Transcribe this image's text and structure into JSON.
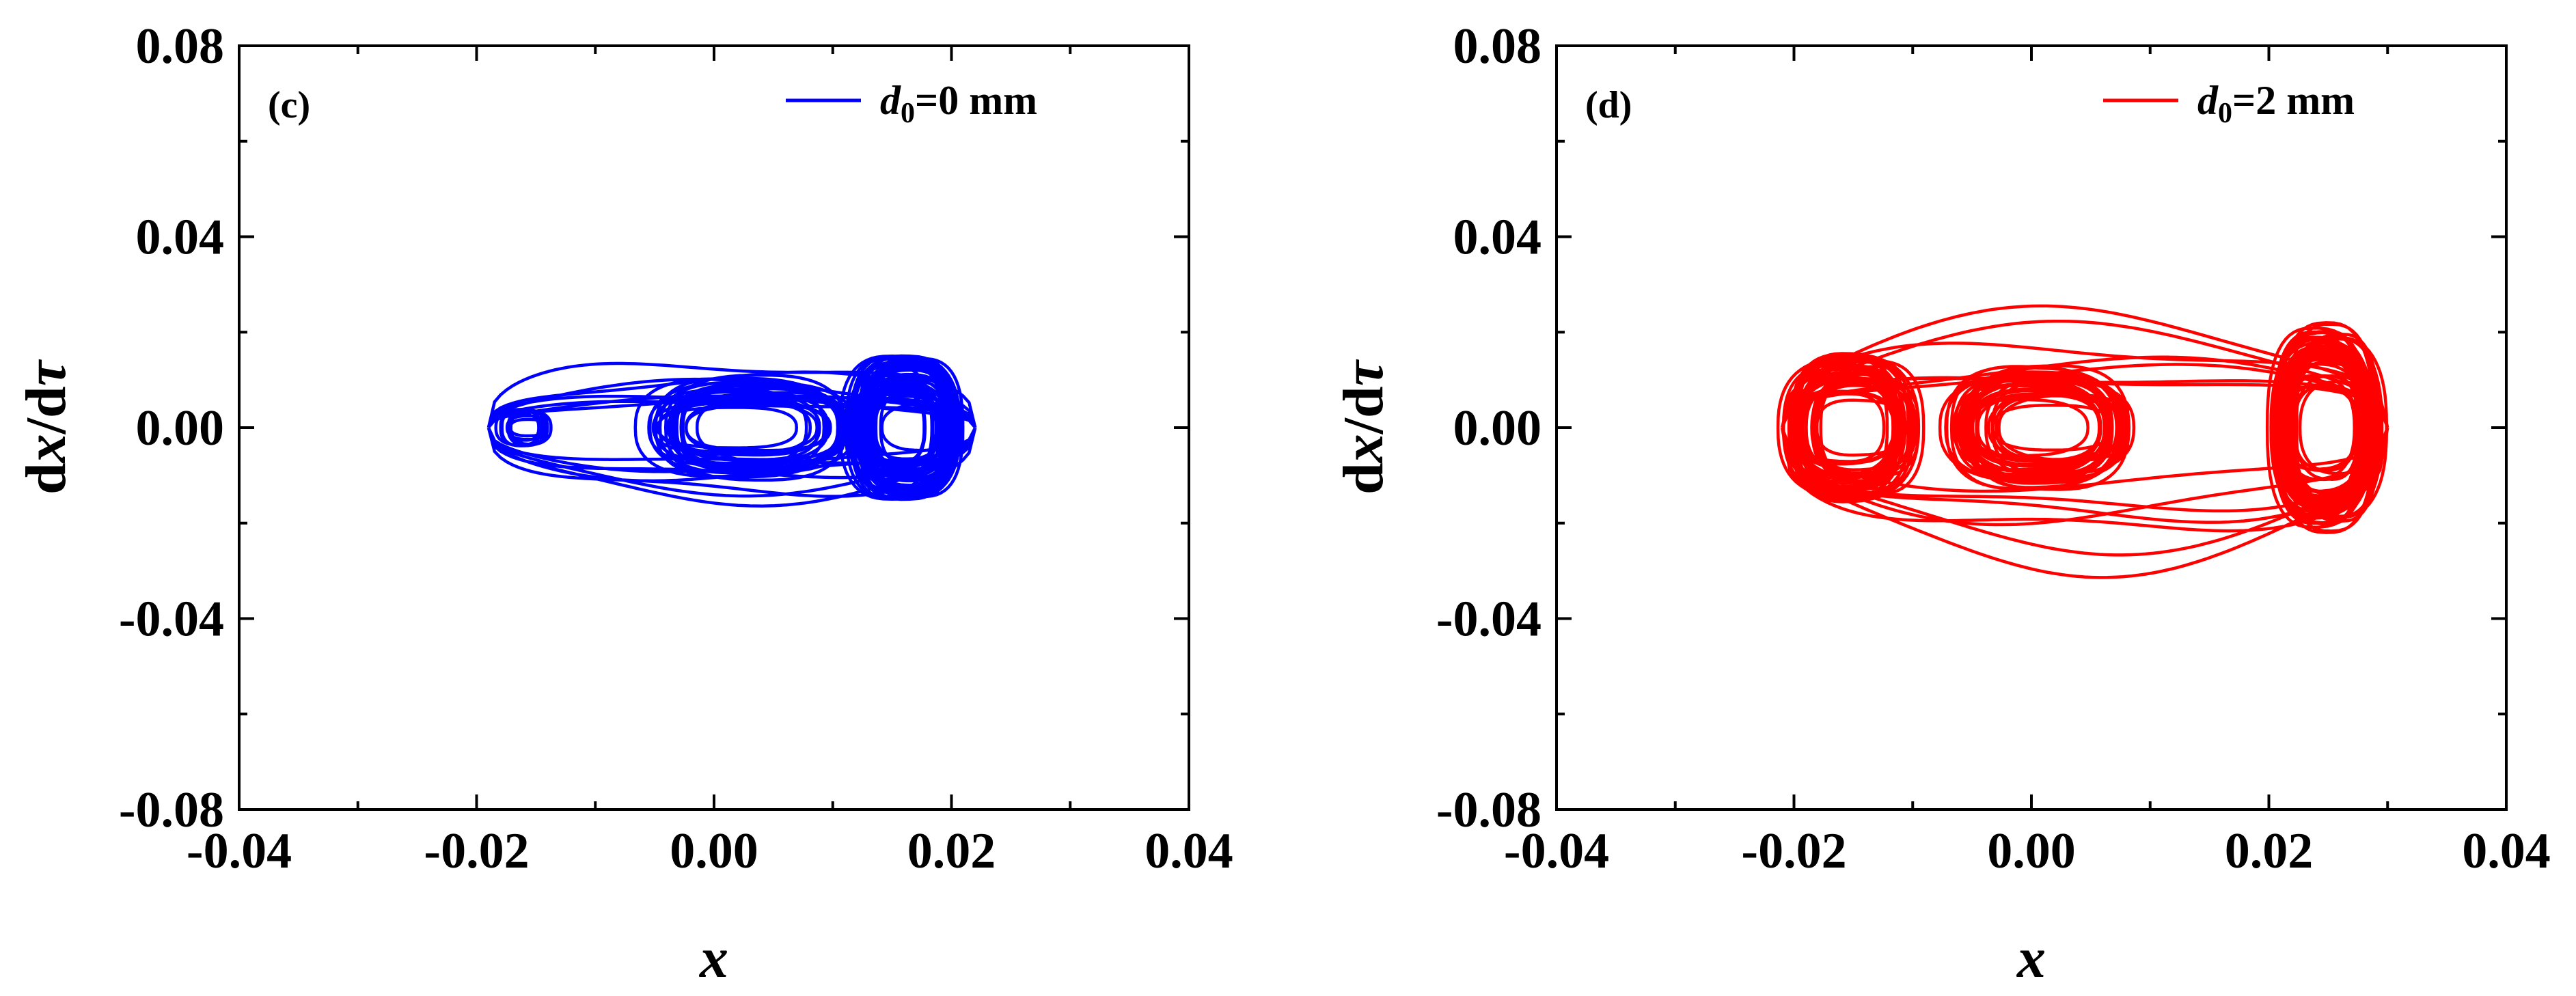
{
  "chart_data": [
    {
      "type": "line",
      "panel_label": "(c)",
      "xlabel": "x",
      "ylabel": "dx/dτ",
      "xlim": [
        -0.04,
        0.04
      ],
      "ylim": [
        -0.08,
        0.08
      ],
      "xticks": [
        "-0.04",
        "-0.02",
        "0.00",
        "0.02",
        "0.04"
      ],
      "yticks": [
        "0.08",
        "0.04",
        "0.00",
        "-0.04",
        "-0.08"
      ],
      "legend_position": "top-right",
      "series": [
        {
          "name": "d0=0 mm",
          "legend": {
            "symbol": "d",
            "subscript": "0",
            "rest": "=0 mm"
          },
          "color": "#0000ff",
          "wells": [
            {
              "cx": -0.016,
              "rx": 0.002,
              "ry": 0.004,
              "loops": 8
            },
            {
              "cx": 0.003,
              "rx": 0.008,
              "ry": 0.011,
              "loops": 22
            },
            {
              "cx": 0.016,
              "rx": 0.004,
              "ry": 0.015,
              "loops": 45
            }
          ],
          "envelope": {
            "x_min": -0.019,
            "x_max": 0.022,
            "y_min": -0.017,
            "y_max": 0.017
          }
        }
      ]
    },
    {
      "type": "line",
      "panel_label": "(d)",
      "xlabel": "x",
      "ylabel": "dx/dτ",
      "xlim": [
        -0.04,
        0.04
      ],
      "ylim": [
        -0.08,
        0.08
      ],
      "xticks": [
        "-0.04",
        "-0.02",
        "0.00",
        "0.02",
        "0.04"
      ],
      "yticks": [
        "0.08",
        "0.04",
        "0.00",
        "-0.04",
        "-0.08"
      ],
      "legend_position": "top-right",
      "series": [
        {
          "name": "d0=2 mm",
          "legend": {
            "symbol": "d",
            "subscript": "0",
            "rest": "=2 mm"
          },
          "color": "#ff0000",
          "wells": [
            {
              "cx": -0.015,
              "rx": 0.005,
              "ry": 0.016,
              "loops": 35
            },
            {
              "cx": 0.001,
              "rx": 0.007,
              "ry": 0.013,
              "loops": 30
            },
            {
              "cx": 0.025,
              "rx": 0.004,
              "ry": 0.022,
              "loops": 45
            }
          ],
          "envelope": {
            "x_min": -0.021,
            "x_max": 0.03,
            "y_min": -0.034,
            "y_max": 0.026
          }
        }
      ]
    }
  ]
}
